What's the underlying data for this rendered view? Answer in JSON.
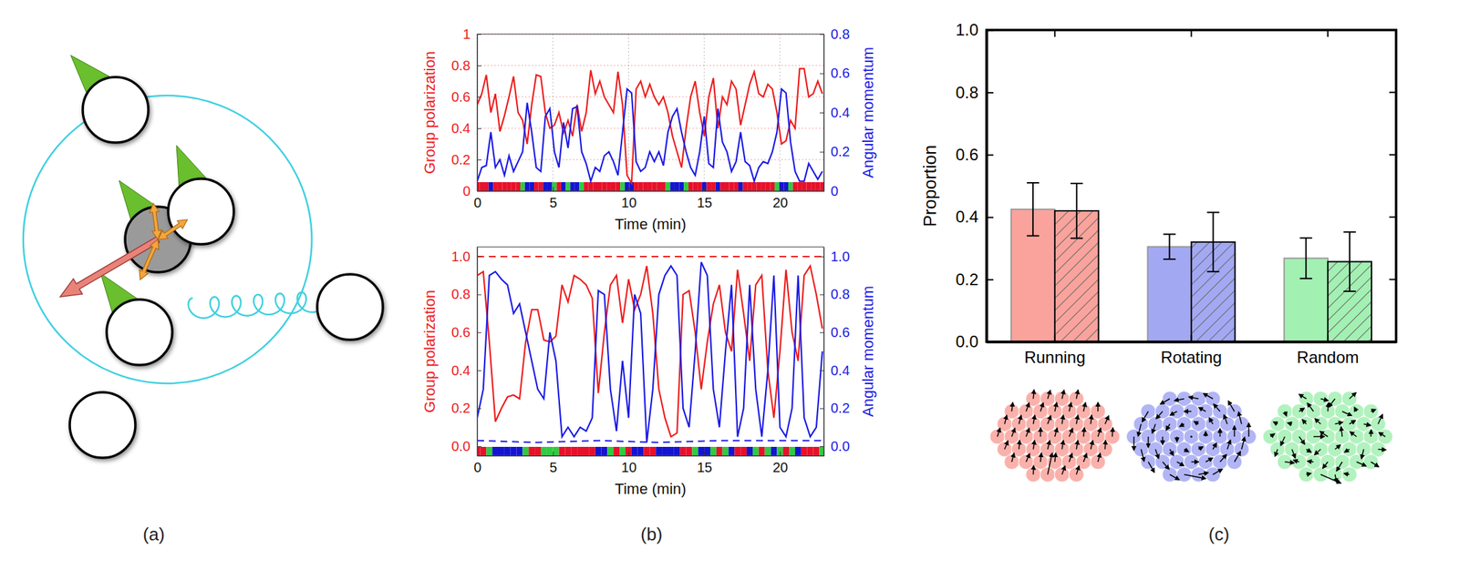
{
  "panel_labels": [
    "(a)",
    "(b)",
    "(c)"
  ],
  "chart_data": [
    {
      "type": "line",
      "xlabel": "Time (min)",
      "ylabel": "Group polarization",
      "y2label": "Angular momentum",
      "xlim": [
        0,
        22.9
      ],
      "xticks": [
        0,
        5,
        10,
        15,
        20
      ],
      "ylim": [
        0,
        1
      ],
      "yticks": [
        0,
        0.2,
        0.4,
        0.6,
        0.8,
        1
      ],
      "y2lim": [
        0,
        0.8
      ],
      "y2ticks": [
        0,
        0.2,
        0.4,
        0.6,
        0.8
      ],
      "grid": true,
      "x": [
        0,
        0.3,
        0.6,
        0.9,
        1.2,
        1.5,
        1.8,
        2.1,
        2.4,
        2.7,
        3,
        3.3,
        3.6,
        3.9,
        4.2,
        4.5,
        4.8,
        5.1,
        5.4,
        5.7,
        6,
        6.3,
        6.6,
        6.9,
        7.2,
        7.5,
        7.8,
        8.1,
        8.4,
        8.7,
        9,
        9.3,
        9.6,
        9.9,
        10.2,
        10.5,
        10.8,
        11.1,
        11.4,
        11.7,
        12,
        12.3,
        12.6,
        12.9,
        13.2,
        13.5,
        13.8,
        14.1,
        14.4,
        14.7,
        15,
        15.3,
        15.6,
        15.9,
        16.2,
        16.5,
        16.8,
        17.1,
        17.4,
        17.7,
        18,
        18.3,
        18.6,
        18.9,
        19.2,
        19.5,
        19.8,
        20.1,
        20.4,
        20.7,
        21,
        21.3,
        21.6,
        21.9,
        22.2,
        22.5,
        22.8
      ],
      "series": [
        {
          "color": "#ee1c1c",
          "line_style": "solid",
          "values": [
            0.55,
            0.62,
            0.74,
            0.5,
            0.62,
            0.38,
            0.48,
            0.6,
            0.73,
            0.5,
            0.45,
            0.3,
            0.55,
            0.74,
            0.73,
            0.5,
            0.4,
            0.42,
            0.5,
            0.37,
            0.45,
            0.35,
            0.55,
            0.38,
            0.5,
            0.77,
            0.62,
            0.7,
            0.6,
            0.55,
            0.5,
            0.76,
            0.55,
            0.1,
            0.05,
            0.65,
            0.7,
            0.6,
            0.68,
            0.6,
            0.55,
            0.6,
            0.5,
            0.35,
            0.25,
            0.15,
            0.4,
            0.6,
            0.7,
            0.5,
            0.35,
            0.6,
            0.72,
            0.4,
            0.6,
            0.55,
            0.7,
            0.65,
            0.42,
            0.55,
            0.68,
            0.76,
            0.62,
            0.6,
            0.68,
            0.65,
            0.5,
            0.3,
            0.32,
            0.45,
            0.4,
            0.78,
            0.78,
            0.6,
            0.62,
            0.7,
            0.62
          ]
        },
        {
          "color": "#1a1ae6",
          "axis": "y2",
          "line_style": "solid",
          "values": [
            0.05,
            0.12,
            0.13,
            0.3,
            0.12,
            0.16,
            0.08,
            0.18,
            0.1,
            0.15,
            0.2,
            0.45,
            0.3,
            0.12,
            0.1,
            0.38,
            0.42,
            0.2,
            0.12,
            0.35,
            0.22,
            0.42,
            0.43,
            0.2,
            0.14,
            0.05,
            0.12,
            0.1,
            0.18,
            0.2,
            0.15,
            0.08,
            0.3,
            0.52,
            0.5,
            0.15,
            0.1,
            0.12,
            0.2,
            0.15,
            0.2,
            0.13,
            0.3,
            0.38,
            0.42,
            0.3,
            0.2,
            0.12,
            0.08,
            0.2,
            0.38,
            0.14,
            0.12,
            0.42,
            0.25,
            0.2,
            0.1,
            0.15,
            0.3,
            0.15,
            0.13,
            0.05,
            0.12,
            0.15,
            0.14,
            0.2,
            0.3,
            0.52,
            0.5,
            0.25,
            0.1,
            0.05,
            0.05,
            0.14,
            0.1,
            0.06,
            0.1
          ]
        }
      ],
      "state_bar": {
        "colors": [
          "#e8102a",
          "#1414d0",
          "#2ecc40"
        ],
        "values": [
          0,
          0,
          0,
          1,
          0,
          0,
          0,
          0,
          0,
          0,
          2,
          1,
          1,
          0,
          0,
          1,
          1,
          2,
          0,
          1,
          2,
          1,
          1,
          2,
          0,
          0,
          0,
          0,
          0,
          0,
          0,
          0,
          2,
          1,
          1,
          0,
          0,
          0,
          0,
          0,
          0,
          0,
          2,
          1,
          1,
          1,
          2,
          0,
          0,
          0,
          1,
          0,
          0,
          1,
          0,
          0,
          0,
          0,
          1,
          0,
          0,
          0,
          0,
          0,
          0,
          0,
          2,
          1,
          1,
          2,
          0,
          0,
          0,
          0,
          0,
          0,
          0
        ]
      }
    },
    {
      "type": "line",
      "xlabel": "Time (min)",
      "ylabel": "Group polarization",
      "y2label": "Angular momentum",
      "xlim": [
        0,
        22.9
      ],
      "xticks": [
        0,
        5,
        10,
        15,
        20
      ],
      "ylim": [
        -0.05,
        1.05
      ],
      "yticks": [
        {
          "value": 0,
          "label": "0.0"
        },
        {
          "value": 0.2,
          "label": "0.2"
        },
        {
          "value": 0.4,
          "label": "0.4"
        },
        {
          "value": 0.6,
          "label": "0.6"
        },
        {
          "value": 0.8,
          "label": "0.8"
        },
        {
          "value": 1,
          "label": "1.0"
        }
      ],
      "y2lim": [
        -0.05,
        1.05
      ],
      "y2ticks": [
        {
          "value": 0,
          "label": "0.0"
        },
        {
          "value": 0.2,
          "label": "0.2"
        },
        {
          "value": 0.4,
          "label": "0.4"
        },
        {
          "value": 0.6,
          "label": "0.6"
        },
        {
          "value": 0.8,
          "label": "0.8"
        },
        {
          "value": 1,
          "label": "1.0"
        }
      ],
      "grid": false,
      "x": [
        0,
        0.4,
        0.8,
        1.2,
        1.6,
        2,
        2.4,
        2.8,
        3.2,
        3.6,
        4,
        4.4,
        4.8,
        5.2,
        5.6,
        6,
        6.4,
        6.8,
        7.2,
        7.6,
        8,
        8.4,
        8.8,
        9.2,
        9.6,
        10,
        10.4,
        10.8,
        11.2,
        11.6,
        12,
        12.4,
        12.8,
        13.2,
        13.6,
        14,
        14.4,
        14.8,
        15.2,
        15.6,
        16,
        16.4,
        16.8,
        17.2,
        17.6,
        18,
        18.4,
        18.8,
        19.2,
        19.6,
        20,
        20.4,
        20.8,
        21.2,
        21.6,
        22,
        22.4,
        22.8
      ],
      "series": [
        {
          "color": "#ee1c1c",
          "line_style": "solid",
          "values": [
            0.9,
            0.92,
            0.55,
            0.13,
            0.2,
            0.26,
            0.27,
            0.25,
            0.55,
            0.72,
            0.72,
            0.56,
            0.55,
            0.58,
            0.85,
            0.76,
            0.9,
            0.88,
            0.85,
            0.78,
            0.28,
            0.6,
            0.85,
            0.9,
            0.65,
            0.88,
            0.72,
            0.8,
            0.95,
            0.7,
            0.3,
            0.15,
            0.05,
            0.07,
            0.8,
            0.82,
            0.6,
            0.3,
            0.55,
            0.75,
            0.85,
            0.6,
            0.5,
            0.93,
            0.7,
            0.45,
            0.85,
            0.9,
            0.4,
            0.15,
            0.5,
            0.93,
            0.6,
            0.45,
            0.9,
            0.95,
            0.8,
            0.62
          ]
        },
        {
          "color": "#1a1ae6",
          "axis": "y2",
          "line_style": "solid",
          "values": [
            0.15,
            0.3,
            0.9,
            0.92,
            0.88,
            0.85,
            0.7,
            0.75,
            0.6,
            0.45,
            0.3,
            0.25,
            0.6,
            0.45,
            0.05,
            0.1,
            0.05,
            0.1,
            0.08,
            0.15,
            0.82,
            0.8,
            0.3,
            0.08,
            0.45,
            0.15,
            0.8,
            0.7,
            0.02,
            0.3,
            0.8,
            0.9,
            0.95,
            0.9,
            0.2,
            0.1,
            0.5,
            0.97,
            0.9,
            0.3,
            0.1,
            0.5,
            0.85,
            0.05,
            0.2,
            0.85,
            0.3,
            0.05,
            0.4,
            0.9,
            0.1,
            0.05,
            0.2,
            0.9,
            0.15,
            0.05,
            0.1,
            0.5
          ]
        },
        {
          "color": "#ee1c1c",
          "line_style": "dashed",
          "x": [
            0,
            22.9
          ],
          "values": [
            1,
            1
          ]
        },
        {
          "color": "#1a1ae6",
          "axis": "y2",
          "line_style": "dashed",
          "x": [
            0,
            4,
            8,
            12,
            16,
            20,
            22.9
          ],
          "values": [
            0.03,
            0.02,
            0.03,
            0.02,
            0.03,
            0.03,
            0.03
          ]
        }
      ],
      "state_bar": {
        "colors": [
          "#e8102a",
          "#1414d0",
          "#2ecc40"
        ],
        "values": [
          0,
          0,
          2,
          1,
          1,
          1,
          1,
          1,
          2,
          0,
          0,
          2,
          2,
          2,
          0,
          0,
          0,
          0,
          0,
          0,
          1,
          1,
          2,
          0,
          2,
          0,
          1,
          1,
          0,
          0,
          1,
          1,
          1,
          1,
          0,
          0,
          2,
          1,
          1,
          2,
          0,
          2,
          1,
          0,
          0,
          1,
          2,
          0,
          2,
          1,
          2,
          0,
          2,
          1,
          0,
          0,
          0,
          2
        ]
      }
    },
    {
      "type": "bar",
      "ylabel": "Proportion",
      "categories": [
        "Running",
        "Rotating",
        "Random"
      ],
      "ylim": [
        0,
        1
      ],
      "yticks": [
        {
          "value": 0,
          "label": "0.0"
        },
        {
          "value": 0.2,
          "label": "0.2"
        },
        {
          "value": 0.4,
          "label": "0.4"
        },
        {
          "value": 0.6,
          "label": "0.6"
        },
        {
          "value": 0.8,
          "label": "0.8"
        },
        {
          "value": 1,
          "label": "1.0"
        }
      ],
      "series": [
        {
          "colors": [
            "#f9a39c",
            "#a3a8f3",
            "#a3f0b3"
          ],
          "values": [
            0.425,
            0.305,
            0.268
          ],
          "errors": [
            0.085,
            0.04,
            0.065
          ]
        },
        {
          "colors": [
            "#f9a39c",
            "#a3a8f3",
            "#a3f0b3"
          ],
          "values": [
            0.42,
            0.32,
            0.257
          ],
          "errors": [
            0.088,
            0.095,
            0.095
          ]
        }
      ]
    }
  ]
}
